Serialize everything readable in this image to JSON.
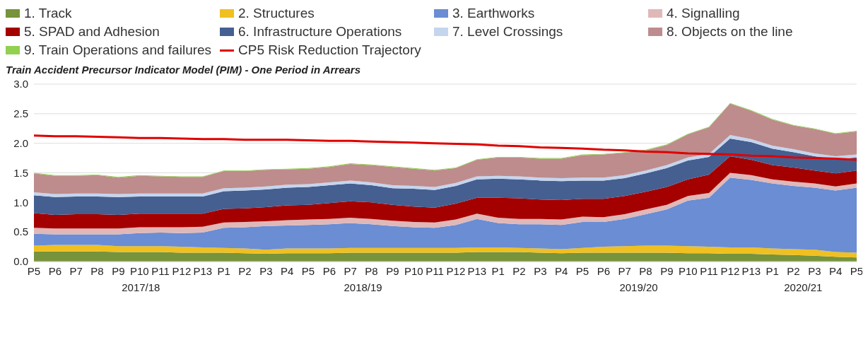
{
  "chart_data": {
    "type": "area",
    "stacked": true,
    "title": "Train Accident Precursor Indicator Model (PIM) - One Period in Arrears",
    "categories": [
      "P5",
      "P6",
      "P7",
      "P8",
      "P9",
      "P10",
      "P11",
      "P12",
      "P13",
      "P1",
      "P2",
      "P3",
      "P4",
      "P5",
      "P6",
      "P7",
      "P8",
      "P9",
      "P10",
      "P11",
      "P12",
      "P13",
      "P1",
      "P2",
      "P3",
      "P4",
      "P5",
      "P6",
      "P7",
      "P8",
      "P9",
      "P10",
      "P11",
      "P12",
      "P13",
      "P1",
      "P2",
      "P3",
      "P4",
      "P5"
    ],
    "annotations": [
      "2017/18",
      "2018/19",
      "2019/20",
      "2020/21"
    ],
    "ylim": [
      0,
      3
    ],
    "yticks": [
      {
        "value": 0,
        "label": "0.0"
      },
      {
        "value": 0.5,
        "label": "0.5"
      },
      {
        "value": 1,
        "label": "1.0"
      },
      {
        "value": 1.5,
        "label": "1.5"
      },
      {
        "value": 2,
        "label": "2.0"
      },
      {
        "value": 2.5,
        "label": "2.5"
      },
      {
        "value": 3,
        "label": "3.0"
      }
    ],
    "grid": "y",
    "legend": "top",
    "marker": "none",
    "series": [
      {
        "name": "1. Track",
        "color": "#77933c",
        "values": [
          0.17,
          0.17,
          0.17,
          0.17,
          0.16,
          0.16,
          0.16,
          0.15,
          0.15,
          0.15,
          0.14,
          0.13,
          0.14,
          0.14,
          0.14,
          0.15,
          0.15,
          0.15,
          0.15,
          0.15,
          0.15,
          0.16,
          0.16,
          0.16,
          0.15,
          0.14,
          0.15,
          0.15,
          0.15,
          0.15,
          0.15,
          0.14,
          0.14,
          0.13,
          0.13,
          0.12,
          0.11,
          0.1,
          0.08,
          0.07
        ]
      },
      {
        "name": "2. Structures",
        "color": "#f0c020",
        "values": [
          0.1,
          0.11,
          0.11,
          0.11,
          0.1,
          0.1,
          0.1,
          0.1,
          0.09,
          0.08,
          0.08,
          0.07,
          0.08,
          0.08,
          0.08,
          0.08,
          0.08,
          0.08,
          0.08,
          0.08,
          0.08,
          0.08,
          0.08,
          0.07,
          0.07,
          0.07,
          0.08,
          0.1,
          0.11,
          0.12,
          0.12,
          0.12,
          0.11,
          0.11,
          0.11,
          0.1,
          0.1,
          0.1,
          0.08,
          0.08
        ]
      },
      {
        "name": "3. Earthworks",
        "color": "#6a8dd4",
        "values": [
          0.2,
          0.18,
          0.18,
          0.18,
          0.2,
          0.22,
          0.23,
          0.23,
          0.25,
          0.34,
          0.36,
          0.4,
          0.39,
          0.4,
          0.41,
          0.42,
          0.4,
          0.37,
          0.35,
          0.34,
          0.39,
          0.48,
          0.41,
          0.4,
          0.41,
          0.41,
          0.44,
          0.42,
          0.46,
          0.53,
          0.61,
          0.77,
          0.83,
          1.18,
          1.14,
          1.1,
          1.07,
          1.05,
          1.04,
          1.1
        ]
      },
      {
        "name": "4. Signalling",
        "color": "#e0b8b8",
        "values": [
          0.1,
          0.1,
          0.1,
          0.1,
          0.1,
          0.1,
          0.09,
          0.1,
          0.1,
          0.09,
          0.09,
          0.08,
          0.09,
          0.09,
          0.09,
          0.09,
          0.09,
          0.09,
          0.09,
          0.09,
          0.09,
          0.09,
          0.09,
          0.09,
          0.09,
          0.09,
          0.09,
          0.08,
          0.08,
          0.08,
          0.08,
          0.08,
          0.08,
          0.08,
          0.08,
          0.07,
          0.07,
          0.07,
          0.07,
          0.07
        ]
      },
      {
        "name": "5. SPAD and Adhesion",
        "color": "#a50000",
        "values": [
          0.25,
          0.23,
          0.24,
          0.24,
          0.23,
          0.23,
          0.23,
          0.23,
          0.22,
          0.23,
          0.23,
          0.24,
          0.25,
          0.25,
          0.27,
          0.28,
          0.28,
          0.27,
          0.26,
          0.25,
          0.27,
          0.27,
          0.34,
          0.35,
          0.33,
          0.33,
          0.3,
          0.31,
          0.31,
          0.3,
          0.3,
          0.28,
          0.31,
          0.28,
          0.26,
          0.24,
          0.24,
          0.22,
          0.22,
          0.22
        ]
      },
      {
        "name": "6. Infrastructure Operations",
        "color": "#455f91",
        "values": [
          0.3,
          0.3,
          0.3,
          0.3,
          0.3,
          0.29,
          0.29,
          0.29,
          0.29,
          0.3,
          0.3,
          0.3,
          0.3,
          0.3,
          0.3,
          0.3,
          0.29,
          0.28,
          0.3,
          0.3,
          0.3,
          0.31,
          0.32,
          0.32,
          0.32,
          0.32,
          0.31,
          0.31,
          0.3,
          0.31,
          0.32,
          0.32,
          0.3,
          0.3,
          0.3,
          0.28,
          0.26,
          0.24,
          0.24,
          0.22
        ]
      },
      {
        "name": "7. Level Crossings",
        "color": "#c5d5ee",
        "values": [
          0.05,
          0.05,
          0.05,
          0.05,
          0.05,
          0.05,
          0.05,
          0.05,
          0.05,
          0.05,
          0.05,
          0.05,
          0.05,
          0.05,
          0.05,
          0.05,
          0.05,
          0.05,
          0.05,
          0.05,
          0.05,
          0.05,
          0.05,
          0.05,
          0.05,
          0.05,
          0.05,
          0.05,
          0.05,
          0.05,
          0.05,
          0.05,
          0.05,
          0.06,
          0.05,
          0.05,
          0.05,
          0.05,
          0.05,
          0.05
        ]
      },
      {
        "name": "8. Objects on the line",
        "color": "#be8c8c",
        "values": [
          0.32,
          0.31,
          0.3,
          0.31,
          0.28,
          0.3,
          0.29,
          0.28,
          0.28,
          0.29,
          0.28,
          0.28,
          0.26,
          0.26,
          0.26,
          0.28,
          0.29,
          0.31,
          0.29,
          0.28,
          0.25,
          0.28,
          0.31,
          0.32,
          0.32,
          0.33,
          0.38,
          0.39,
          0.38,
          0.34,
          0.34,
          0.39,
          0.45,
          0.53,
          0.48,
          0.44,
          0.4,
          0.41,
          0.38,
          0.39
        ]
      },
      {
        "name": "9. Train Operations and failures",
        "color": "#92d050",
        "values": [
          0.01,
          0.01,
          0.01,
          0.01,
          0.01,
          0.01,
          0.01,
          0.01,
          0.01,
          0.01,
          0.01,
          0.01,
          0.01,
          0.01,
          0.01,
          0.01,
          0.01,
          0.01,
          0.01,
          0.01,
          0.01,
          0.01,
          0.01,
          0.01,
          0.01,
          0.01,
          0.01,
          0.01,
          0.01,
          0.01,
          0.01,
          0.01,
          0.01,
          0.01,
          0.01,
          0.01,
          0.01,
          0.01,
          0.01,
          0.01
        ]
      },
      {
        "name": "CP5 Risk Reduction Trajectory",
        "type": "line",
        "color": "#e00000",
        "values": [
          2.13,
          2.12,
          2.12,
          2.11,
          2.1,
          2.09,
          2.09,
          2.08,
          2.07,
          2.07,
          2.06,
          2.06,
          2.06,
          2.05,
          2.04,
          2.04,
          2.03,
          2.02,
          2.01,
          2.0,
          1.99,
          1.98,
          1.96,
          1.95,
          1.93,
          1.92,
          1.91,
          1.89,
          1.88,
          1.86,
          1.85,
          1.83,
          1.82,
          1.81,
          1.79,
          1.78,
          1.76,
          1.75,
          1.74,
          1.72
        ]
      }
    ]
  }
}
